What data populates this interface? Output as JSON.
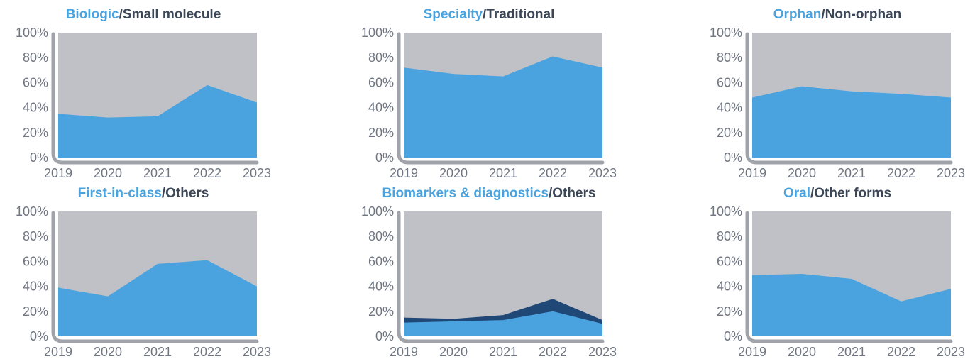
{
  "colors": {
    "primary": "#4aa3de",
    "background_area": "#c0c1c6",
    "secondary_dark": "#1f4876",
    "axis": "#a0a3a9",
    "title_dark": "#3b4656",
    "tick_text": "#6f7682"
  },
  "chart_data": [
    {
      "type": "area",
      "title_highlight": "Biologic",
      "title_rest": "/Small molecule",
      "x": [
        "2019",
        "2020",
        "2021",
        "2022",
        "2023"
      ],
      "y_ticks": [
        "0%",
        "20%",
        "40%",
        "60%",
        "80%",
        "100%"
      ],
      "ylim": [
        0,
        100
      ],
      "stacked": true,
      "series": [
        {
          "values": [
            35,
            32,
            33,
            58,
            44
          ],
          "color": "#4aa3de"
        }
      ],
      "remainder_color": "#c0c1c6"
    },
    {
      "type": "area",
      "title_highlight": "Specialty",
      "title_rest": "/Traditional",
      "x": [
        "2019",
        "2020",
        "2021",
        "2022",
        "2023"
      ],
      "y_ticks": [
        "0%",
        "20%",
        "40%",
        "60%",
        "80%",
        "100%"
      ],
      "ylim": [
        0,
        100
      ],
      "stacked": true,
      "series": [
        {
          "values": [
            72,
            67,
            65,
            81,
            72
          ],
          "color": "#4aa3de"
        }
      ],
      "remainder_color": "#c0c1c6"
    },
    {
      "type": "area",
      "title_highlight": "Orphan",
      "title_rest": "/Non-orphan",
      "x": [
        "2019",
        "2020",
        "2021",
        "2022",
        "2023"
      ],
      "y_ticks": [
        "0%",
        "20%",
        "40%",
        "60%",
        "80%",
        "100%"
      ],
      "ylim": [
        0,
        100
      ],
      "stacked": true,
      "series": [
        {
          "values": [
            48,
            57,
            53,
            51,
            48
          ],
          "color": "#4aa3de"
        }
      ],
      "remainder_color": "#c0c1c6"
    },
    {
      "type": "area",
      "title_highlight": "First-in-class",
      "title_rest": "/Others",
      "x": [
        "2019",
        "2020",
        "2021",
        "2022",
        "2023"
      ],
      "y_ticks": [
        "0%",
        "20%",
        "40%",
        "60%",
        "80%",
        "100%"
      ],
      "ylim": [
        0,
        100
      ],
      "stacked": true,
      "series": [
        {
          "values": [
            39,
            32,
            58,
            61,
            40
          ],
          "color": "#4aa3de"
        }
      ],
      "remainder_color": "#c0c1c6"
    },
    {
      "type": "area",
      "title_highlight": "Biomarkers & diagnostics",
      "title_rest": "/Others",
      "x": [
        "2019",
        "2020",
        "2021",
        "2022",
        "2023"
      ],
      "y_ticks": [
        "0%",
        "20%",
        "40%",
        "60%",
        "80%",
        "100%"
      ],
      "ylim": [
        0,
        100
      ],
      "stacked": true,
      "series": [
        {
          "values": [
            11,
            12,
            13,
            20,
            10
          ],
          "color": "#4aa3de"
        },
        {
          "values": [
            4,
            2,
            4,
            10,
            3
          ],
          "color": "#1f4876"
        }
      ],
      "remainder_color": "#c0c1c6"
    },
    {
      "type": "area",
      "title_highlight": "Oral",
      "title_rest": "/Other forms",
      "x": [
        "2019",
        "2020",
        "2021",
        "2022",
        "2023"
      ],
      "y_ticks": [
        "0%",
        "20%",
        "40%",
        "60%",
        "80%",
        "100%"
      ],
      "ylim": [
        0,
        100
      ],
      "stacked": true,
      "series": [
        {
          "values": [
            49,
            50,
            46,
            28,
            38
          ],
          "color": "#4aa3de"
        }
      ],
      "remainder_color": "#c0c1c6"
    }
  ]
}
